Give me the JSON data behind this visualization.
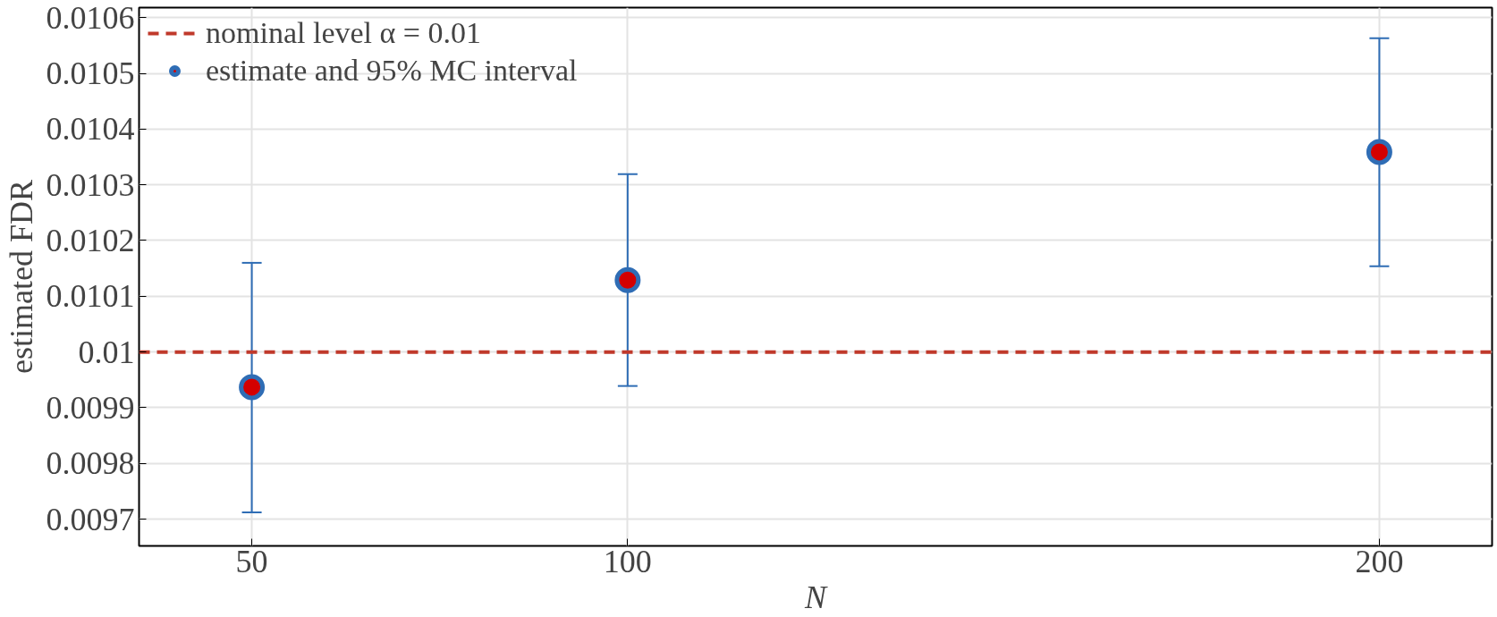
{
  "chart_data": {
    "type": "scatter",
    "xlabel": "N",
    "ylabel": "estimated FDR",
    "x": [
      50,
      100,
      200
    ],
    "series": [
      {
        "name": "estimate and 95% MC interval",
        "color": "#2f6db5",
        "values": [
          0.009937,
          0.010129,
          0.010359
        ],
        "errors": [
          [
            0.009712,
            0.01016
          ],
          [
            0.009939,
            0.010319
          ],
          [
            0.010154,
            0.010563
          ]
        ]
      }
    ],
    "ref_lines": [
      {
        "axis": "y",
        "value": 0.01,
        "label": "nominal level α = 0.01",
        "color": "#c0392b",
        "line_style": "dashed"
      }
    ],
    "xlim": [
      35,
      215
    ],
    "xticks": [
      50,
      100,
      200
    ],
    "ylim": [
      0.009652,
      0.010618
    ],
    "yticks": [
      0.0097,
      0.0098,
      0.0099,
      0.01,
      0.0101,
      0.0102,
      0.0103,
      0.0104,
      0.0105,
      0.0106
    ],
    "grid": true,
    "legend": "top left",
    "marker": "circle"
  }
}
